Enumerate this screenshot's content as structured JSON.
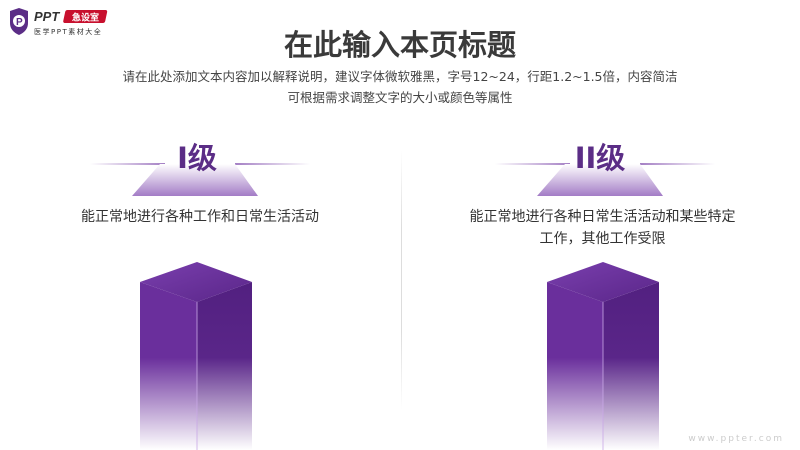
{
  "logo": {
    "brand": "PPT",
    "badge": "急设室",
    "tagline": "医学PPT素材大全",
    "colors": {
      "purple": "#5b2d86",
      "red": "#c8102e"
    }
  },
  "header": {
    "title": "在此输入本页标题",
    "subtitle_lines": [
      "请在此处添加文本内容加以解释说明，建议字体微软雅黑，字号12~24，行距1.2~1.5倍，内容简洁",
      "可根据需求调整文字的大小或颜色等属性"
    ]
  },
  "levels": [
    {
      "label": "I级",
      "description": "能正常地进行各种工作和日常生活活动"
    },
    {
      "label": "II级",
      "description_lines": [
        "能正常地进行各种日常生活活动和某些特定",
        "工作，其他工作受限"
      ]
    }
  ],
  "watermark": "www.ppter.com",
  "colors": {
    "accent": "#5b2d86",
    "cube_top": "#6a3199",
    "cube_side": "#4e1f7a"
  }
}
